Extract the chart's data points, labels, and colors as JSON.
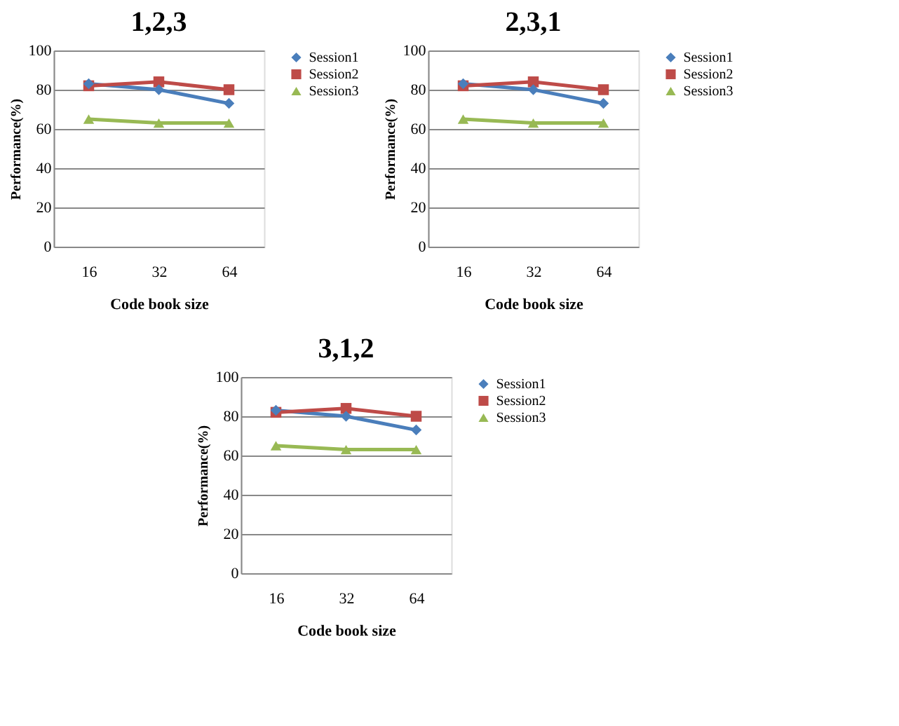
{
  "chart_data": [
    {
      "type": "line",
      "title": "1,2,3",
      "xlabel": "Code book size",
      "ylabel": "Performance(%)",
      "categories": [
        "16",
        "32",
        "64"
      ],
      "ylim": [
        0,
        100
      ],
      "yticks": [
        0,
        20,
        40,
        60,
        80,
        100
      ],
      "grid": "y",
      "legend": "right",
      "series": [
        {
          "name": "Session1",
          "color": "#4a7ebb",
          "marker": "diamond",
          "values": [
            83,
            80,
            73
          ]
        },
        {
          "name": "Session2",
          "color": "#be4b48",
          "marker": "square",
          "values": [
            82,
            84,
            80
          ]
        },
        {
          "name": "Session3",
          "color": "#98b954",
          "marker": "triangle",
          "values": [
            65,
            63,
            63
          ]
        }
      ]
    },
    {
      "type": "line",
      "title": "2,3,1",
      "xlabel": "Code book size",
      "ylabel": "Performance(%)",
      "categories": [
        "16",
        "32",
        "64"
      ],
      "ylim": [
        0,
        100
      ],
      "yticks": [
        0,
        20,
        40,
        60,
        80,
        100
      ],
      "grid": "y",
      "legend": "right",
      "series": [
        {
          "name": "Session1",
          "color": "#4a7ebb",
          "marker": "diamond",
          "values": [
            83,
            80,
            73
          ]
        },
        {
          "name": "Session2",
          "color": "#be4b48",
          "marker": "square",
          "values": [
            82,
            84,
            80
          ]
        },
        {
          "name": "Session3",
          "color": "#98b954",
          "marker": "triangle",
          "values": [
            65,
            63,
            63
          ]
        }
      ]
    },
    {
      "type": "line",
      "title": "3,1,2",
      "xlabel": "Code book size",
      "ylabel": "Performance(%)",
      "categories": [
        "16",
        "32",
        "64"
      ],
      "ylim": [
        0,
        100
      ],
      "yticks": [
        0,
        20,
        40,
        60,
        80,
        100
      ],
      "grid": "y",
      "legend": "right",
      "series": [
        {
          "name": "Session1",
          "color": "#4a7ebb",
          "marker": "diamond",
          "values": [
            83,
            80,
            73
          ]
        },
        {
          "name": "Session2",
          "color": "#be4b48",
          "marker": "square",
          "values": [
            82,
            84,
            80
          ]
        },
        {
          "name": "Session3",
          "color": "#98b954",
          "marker": "triangle",
          "values": [
            65,
            63,
            63
          ]
        }
      ]
    }
  ]
}
